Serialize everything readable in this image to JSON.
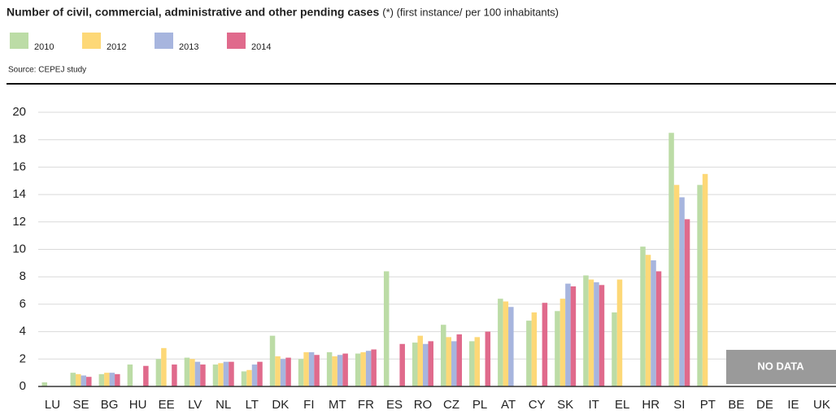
{
  "chart_data": {
    "type": "bar",
    "title": "Number of civil, commercial, administrative and other pending cases",
    "subtitle": "(*) (first instance/ per 100 inhabitants)",
    "source": "Source: CEPEJ study",
    "annotation": "NO DATA",
    "categories": [
      "LU",
      "SE",
      "BG",
      "HU",
      "EE",
      "LV",
      "NL",
      "LT",
      "DK",
      "FI",
      "MT",
      "FR",
      "ES",
      "RO",
      "CZ",
      "PL",
      "AT",
      "CY",
      "SK",
      "IT",
      "EL",
      "HR",
      "SI",
      "PT",
      "BE",
      "DE",
      "IE",
      "UK"
    ],
    "series": [
      {
        "name": "2010",
        "color": "#bcdca6",
        "values": [
          0.3,
          1.0,
          0.9,
          1.6,
          2.0,
          2.1,
          1.6,
          1.1,
          3.7,
          2.0,
          2.5,
          2.4,
          8.4,
          3.2,
          4.5,
          3.3,
          6.4,
          4.8,
          5.5,
          8.1,
          5.4,
          10.2,
          18.5,
          14.7,
          null,
          null,
          null,
          null
        ]
      },
      {
        "name": "2012",
        "color": "#fdd877",
        "values": [
          null,
          0.9,
          1.0,
          null,
          2.8,
          2.0,
          1.7,
          1.2,
          2.2,
          2.5,
          2.2,
          2.5,
          null,
          3.7,
          3.6,
          3.6,
          6.2,
          5.4,
          6.4,
          7.8,
          7.8,
          9.6,
          14.7,
          15.5,
          null,
          null,
          null,
          null
        ]
      },
      {
        "name": "2013",
        "color": "#a7b5de",
        "values": [
          null,
          0.8,
          1.0,
          null,
          null,
          1.8,
          1.8,
          1.6,
          2.0,
          2.5,
          2.3,
          2.6,
          null,
          3.1,
          3.3,
          null,
          5.8,
          null,
          7.5,
          7.6,
          null,
          9.2,
          13.8,
          null,
          null,
          null,
          null,
          null
        ]
      },
      {
        "name": "2014",
        "color": "#e06a8c",
        "values": [
          null,
          0.7,
          0.9,
          1.5,
          1.6,
          1.6,
          1.8,
          1.8,
          2.1,
          2.3,
          2.4,
          2.7,
          3.1,
          3.3,
          3.8,
          4.0,
          null,
          6.1,
          7.3,
          7.4,
          null,
          8.4,
          12.2,
          null,
          null,
          null,
          null,
          null
        ]
      }
    ],
    "ylim": [
      0,
      20
    ],
    "yticks": [
      0,
      2,
      4,
      6,
      8,
      10,
      12,
      14,
      16,
      18,
      20
    ],
    "grid": true
  }
}
